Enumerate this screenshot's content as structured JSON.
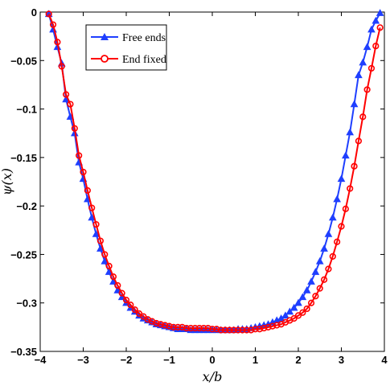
{
  "chart_data": {
    "type": "line",
    "title": "",
    "xlabel": "x/b",
    "ylabel": "ψ(x)",
    "xlim": [
      -4,
      4
    ],
    "ylim": [
      -0.35,
      0
    ],
    "xticks": [
      -4,
      -3,
      -2,
      -1,
      0,
      1,
      2,
      3,
      4
    ],
    "yticks": [
      0,
      -0.05,
      -0.1,
      -0.15,
      -0.2,
      -0.25,
      -0.3,
      -0.35
    ],
    "xtick_labels": [
      "−4",
      "−3",
      "−2",
      "−1",
      "0",
      "1",
      "2",
      "3",
      "4"
    ],
    "ytick_labels": [
      "0",
      "−0.05",
      "−0.1",
      "−0.15",
      "−0.2",
      "−0.25",
      "−0.3",
      "−0.35"
    ],
    "grid": false,
    "legend_position": "top-left",
    "series": [
      {
        "name": "Free ends",
        "color": "#1f3fff",
        "marker": "triangle",
        "x": [
          -3.8,
          -3.7,
          -3.6,
          -3.5,
          -3.4,
          -3.3,
          -3.2,
          -3.1,
          -3.0,
          -2.9,
          -2.8,
          -2.7,
          -2.6,
          -2.5,
          -2.4,
          -2.3,
          -2.2,
          -2.1,
          -2.0,
          -1.9,
          -1.8,
          -1.7,
          -1.6,
          -1.5,
          -1.4,
          -1.3,
          -1.2,
          -1.1,
          -1.0,
          -0.9,
          -0.8,
          -0.7,
          -0.6,
          -0.5,
          -0.4,
          -0.3,
          -0.2,
          -0.1,
          0.0,
          0.1,
          0.2,
          0.3,
          0.4,
          0.5,
          0.6,
          0.7,
          0.8,
          0.9,
          1.0,
          1.1,
          1.2,
          1.3,
          1.4,
          1.5,
          1.6,
          1.7,
          1.8,
          1.9,
          2.0,
          2.1,
          2.2,
          2.3,
          2.4,
          2.5,
          2.6,
          2.7,
          2.8,
          2.9,
          3.0,
          3.1,
          3.2,
          3.3,
          3.4,
          3.5,
          3.6,
          3.7,
          3.8,
          3.9
        ],
        "y": [
          -0.002,
          -0.018,
          -0.036,
          -0.053,
          -0.09,
          -0.108,
          -0.125,
          -0.155,
          -0.172,
          -0.193,
          -0.212,
          -0.229,
          -0.244,
          -0.257,
          -0.268,
          -0.278,
          -0.287,
          -0.294,
          -0.3,
          -0.305,
          -0.309,
          -0.313,
          -0.316,
          -0.318,
          -0.32,
          -0.322,
          -0.323,
          -0.324,
          -0.325,
          -0.326,
          -0.327,
          -0.327,
          -0.327,
          -0.328,
          -0.328,
          -0.328,
          -0.328,
          -0.328,
          -0.328,
          -0.328,
          -0.328,
          -0.328,
          -0.328,
          -0.328,
          -0.327,
          -0.327,
          -0.327,
          -0.326,
          -0.325,
          -0.324,
          -0.323,
          -0.322,
          -0.32,
          -0.318,
          -0.316,
          -0.313,
          -0.309,
          -0.305,
          -0.3,
          -0.294,
          -0.287,
          -0.278,
          -0.268,
          -0.257,
          -0.244,
          -0.229,
          -0.212,
          -0.193,
          -0.172,
          -0.148,
          -0.124,
          -0.095,
          -0.065,
          -0.052,
          -0.036,
          -0.018,
          -0.009,
          -0.001
        ]
      },
      {
        "name": "End fixed",
        "color": "#ff0000",
        "marker": "circle",
        "x": [
          -3.8,
          -3.7,
          -3.6,
          -3.5,
          -3.4,
          -3.3,
          -3.2,
          -3.1,
          -3.0,
          -2.9,
          -2.8,
          -2.7,
          -2.6,
          -2.5,
          -2.4,
          -2.3,
          -2.2,
          -2.1,
          -2.0,
          -1.9,
          -1.8,
          -1.7,
          -1.6,
          -1.5,
          -1.4,
          -1.3,
          -1.2,
          -1.1,
          -1.0,
          -0.9,
          -0.8,
          -0.7,
          -0.6,
          -0.5,
          -0.4,
          -0.3,
          -0.2,
          -0.1,
          0.0,
          0.1,
          0.2,
          0.3,
          0.4,
          0.5,
          0.6,
          0.7,
          0.8,
          0.9,
          1.0,
          1.1,
          1.2,
          1.3,
          1.4,
          1.5,
          1.6,
          1.7,
          1.8,
          1.9,
          2.0,
          2.1,
          2.2,
          2.3,
          2.4,
          2.5,
          2.6,
          2.7,
          2.8,
          2.9,
          3.0,
          3.1,
          3.2,
          3.3,
          3.4,
          3.5,
          3.6,
          3.7,
          3.8,
          3.9
        ],
        "y": [
          -0.002,
          -0.013,
          -0.031,
          -0.056,
          -0.085,
          -0.095,
          -0.12,
          -0.148,
          -0.165,
          -0.184,
          -0.202,
          -0.219,
          -0.236,
          -0.25,
          -0.262,
          -0.273,
          -0.282,
          -0.29,
          -0.297,
          -0.302,
          -0.307,
          -0.311,
          -0.314,
          -0.317,
          -0.319,
          -0.321,
          -0.322,
          -0.323,
          -0.324,
          -0.325,
          -0.325,
          -0.325,
          -0.326,
          -0.326,
          -0.326,
          -0.326,
          -0.326,
          -0.326,
          -0.327,
          -0.327,
          -0.328,
          -0.328,
          -0.328,
          -0.328,
          -0.328,
          -0.328,
          -0.328,
          -0.328,
          -0.327,
          -0.327,
          -0.326,
          -0.325,
          -0.324,
          -0.323,
          -0.322,
          -0.32,
          -0.318,
          -0.316,
          -0.313,
          -0.31,
          -0.306,
          -0.3,
          -0.293,
          -0.285,
          -0.276,
          -0.265,
          -0.252,
          -0.237,
          -0.221,
          -0.203,
          -0.182,
          -0.159,
          -0.133,
          -0.108,
          -0.08,
          -0.058,
          -0.035,
          -0.016
        ]
      }
    ]
  }
}
